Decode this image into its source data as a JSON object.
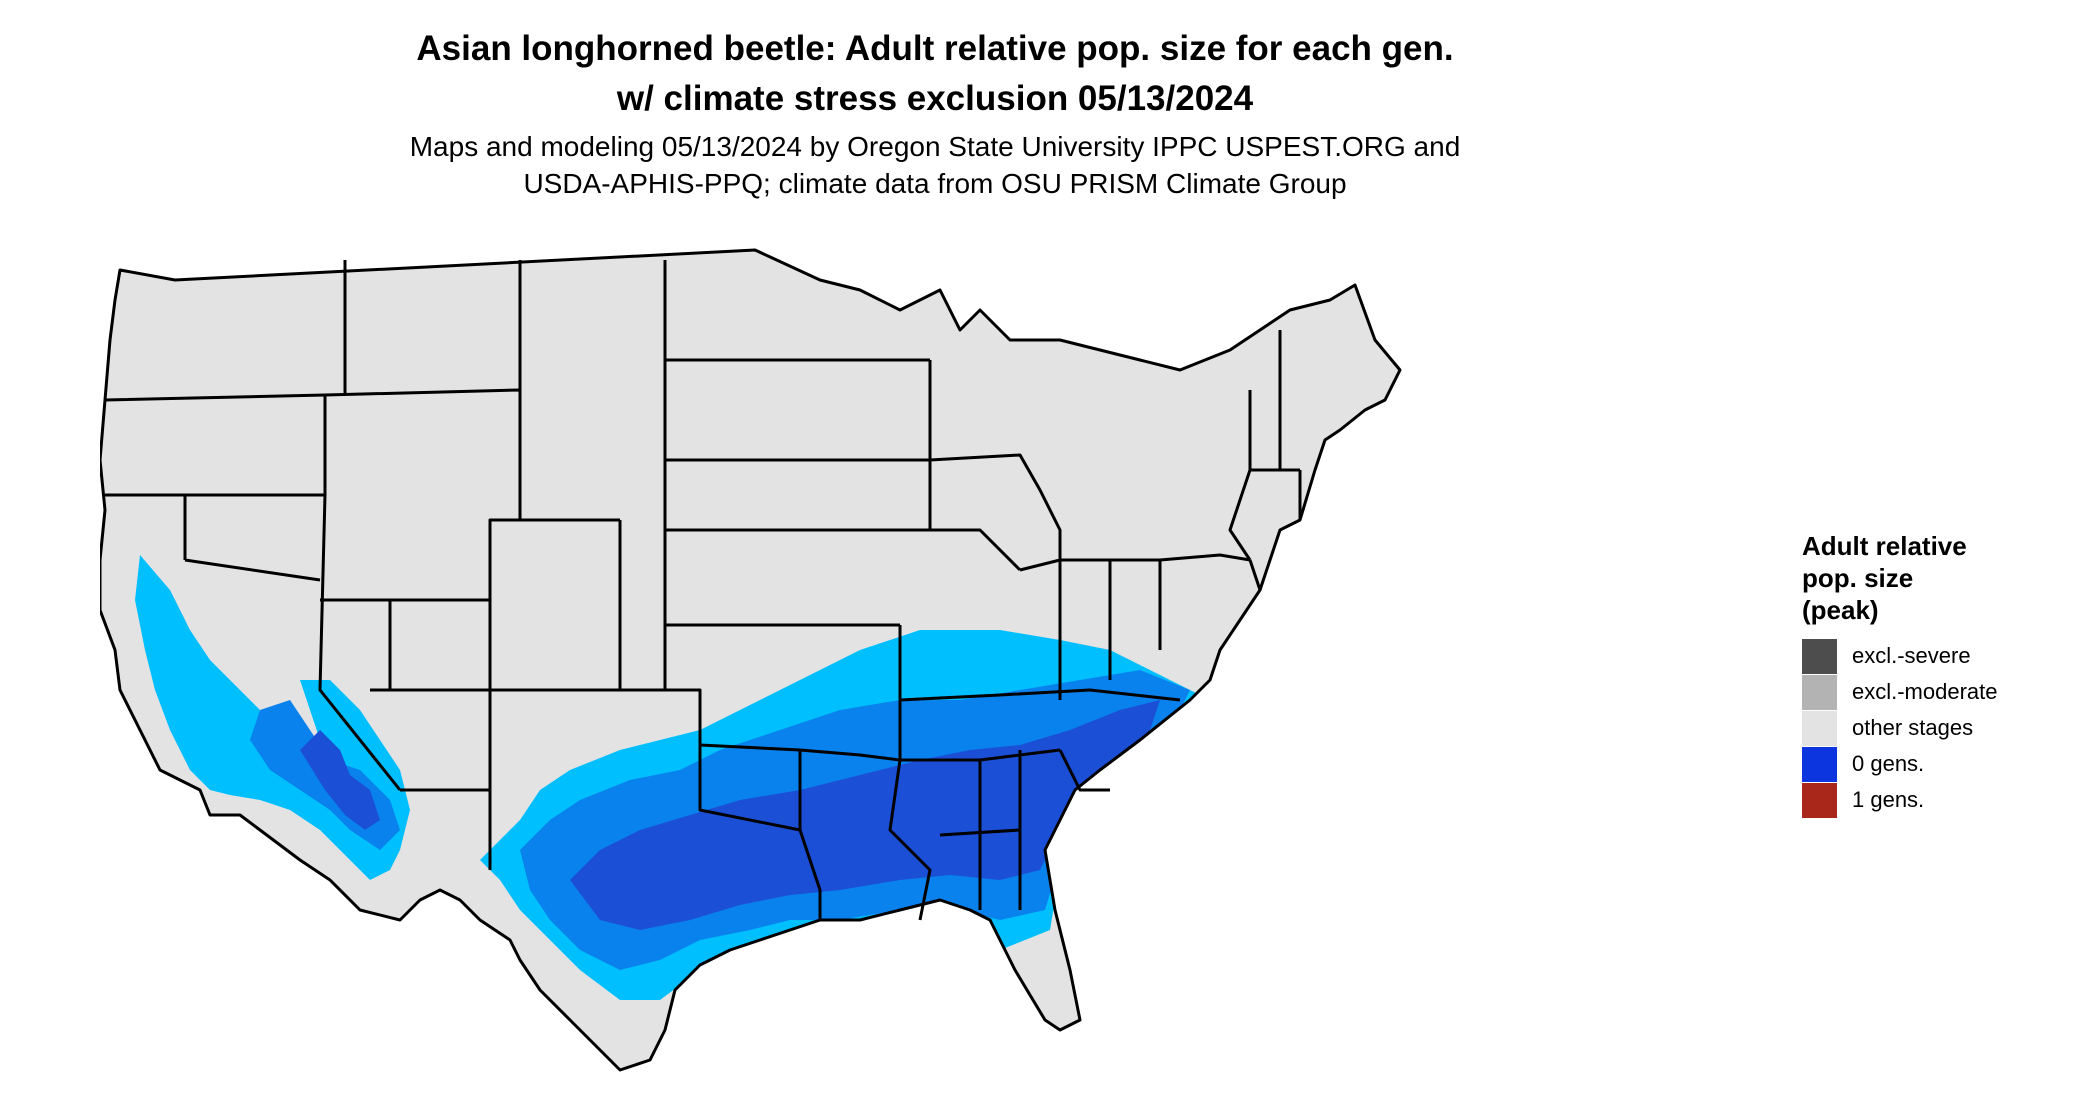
{
  "title": {
    "line1": "Asian longhorned beetle: Adult relative pop. size for each gen.",
    "line2": "w/ climate stress exclusion 05/13/2024"
  },
  "subtitle": {
    "line1": "Maps and modeling 05/13/2024 by Oregon State University IPPC USPEST.ORG and",
    "line2": "USDA-APHIS-PPQ; climate data from OSU PRISM Climate Group"
  },
  "map": {
    "region": "Contiguous United States",
    "colors": {
      "other_stages": "#e3e3e3",
      "light_blue": "#00bfff",
      "mid_blue": "#0a82ee",
      "dark_blue": "#1a4fd6",
      "state_border": "#000000"
    }
  },
  "legend": {
    "title_line1": "Adult relative",
    "title_line2": "pop. size",
    "title_line3": "(peak)",
    "items": [
      {
        "label": "excl.-severe",
        "color": "#4d4d4d"
      },
      {
        "label": "excl.-moderate",
        "color": "#b3b3b3"
      },
      {
        "label": "other stages",
        "color": "#e3e3e3"
      },
      {
        "label": "0 gens.",
        "color": "#0c35e0"
      },
      {
        "label": "1 gens.",
        "color": "#a8261a"
      }
    ]
  }
}
